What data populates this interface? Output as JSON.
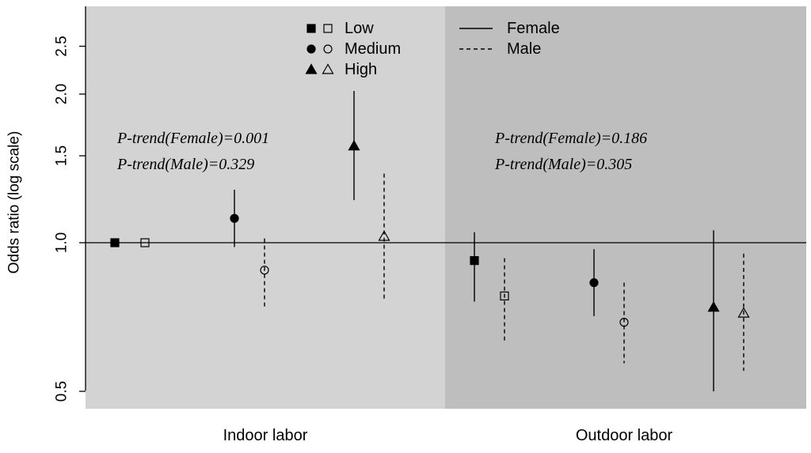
{
  "chart_data": {
    "type": "scatter",
    "ylabel": "Odds ratio (log scale)",
    "y_scale": "log",
    "ylim": [
      0.5,
      2.9
    ],
    "yticks": [
      "0.5",
      "1.0",
      "1.5",
      "2.0",
      "2.5"
    ],
    "reference_line": 1.0,
    "categories": [
      "Indoor labor",
      "Outdoor labor"
    ],
    "panel_colors": [
      "#d3d3d3",
      "#bebebe"
    ],
    "legend_levels": [
      {
        "label": "Low",
        "shape": "square"
      },
      {
        "label": "Medium",
        "shape": "circle"
      },
      {
        "label": "High",
        "shape": "triangle"
      }
    ],
    "legend_sex": [
      {
        "label": "Female",
        "line": "solid",
        "marker": "filled"
      },
      {
        "label": "Male",
        "line": "dashed",
        "marker": "open"
      }
    ],
    "annotations": [
      {
        "group": "Indoor labor",
        "lines": [
          "P-trend(Female)=0.001",
          "P-trend(Male)=0.329"
        ]
      },
      {
        "group": "Outdoor labor",
        "lines": [
          "P-trend(Female)=0.186",
          "P-trend(Male)=0.305"
        ]
      }
    ],
    "points": [
      {
        "group": "Indoor labor",
        "level": "Low",
        "sex": "Female",
        "or": 1.0,
        "lo": null,
        "hi": null
      },
      {
        "group": "Indoor labor",
        "level": "Low",
        "sex": "Male",
        "or": 1.0,
        "lo": null,
        "hi": null
      },
      {
        "group": "Indoor labor",
        "level": "Medium",
        "sex": "Female",
        "or": 1.12,
        "lo": 0.98,
        "hi": 1.28
      },
      {
        "group": "Indoor labor",
        "level": "Medium",
        "sex": "Male",
        "or": 0.88,
        "lo": 0.74,
        "hi": 1.02
      },
      {
        "group": "Indoor labor",
        "level": "High",
        "sex": "Female",
        "or": 1.57,
        "lo": 1.22,
        "hi": 2.03
      },
      {
        "group": "Indoor labor",
        "level": "High",
        "sex": "Male",
        "or": 1.03,
        "lo": 0.76,
        "hi": 1.38
      },
      {
        "group": "Outdoor labor",
        "level": "Low",
        "sex": "Female",
        "or": 0.92,
        "lo": 0.76,
        "hi": 1.05
      },
      {
        "group": "Outdoor labor",
        "level": "Low",
        "sex": "Male",
        "or": 0.78,
        "lo": 0.63,
        "hi": 0.93
      },
      {
        "group": "Outdoor labor",
        "level": "Medium",
        "sex": "Female",
        "or": 0.83,
        "lo": 0.71,
        "hi": 0.97
      },
      {
        "group": "Outdoor labor",
        "level": "Medium",
        "sex": "Male",
        "or": 0.69,
        "lo": 0.57,
        "hi": 0.83
      },
      {
        "group": "Outdoor labor",
        "level": "High",
        "sex": "Female",
        "or": 0.74,
        "lo": 0.5,
        "hi": 1.06
      },
      {
        "group": "Outdoor labor",
        "level": "High",
        "sex": "Male",
        "or": 0.72,
        "lo": 0.55,
        "hi": 0.95
      }
    ]
  }
}
